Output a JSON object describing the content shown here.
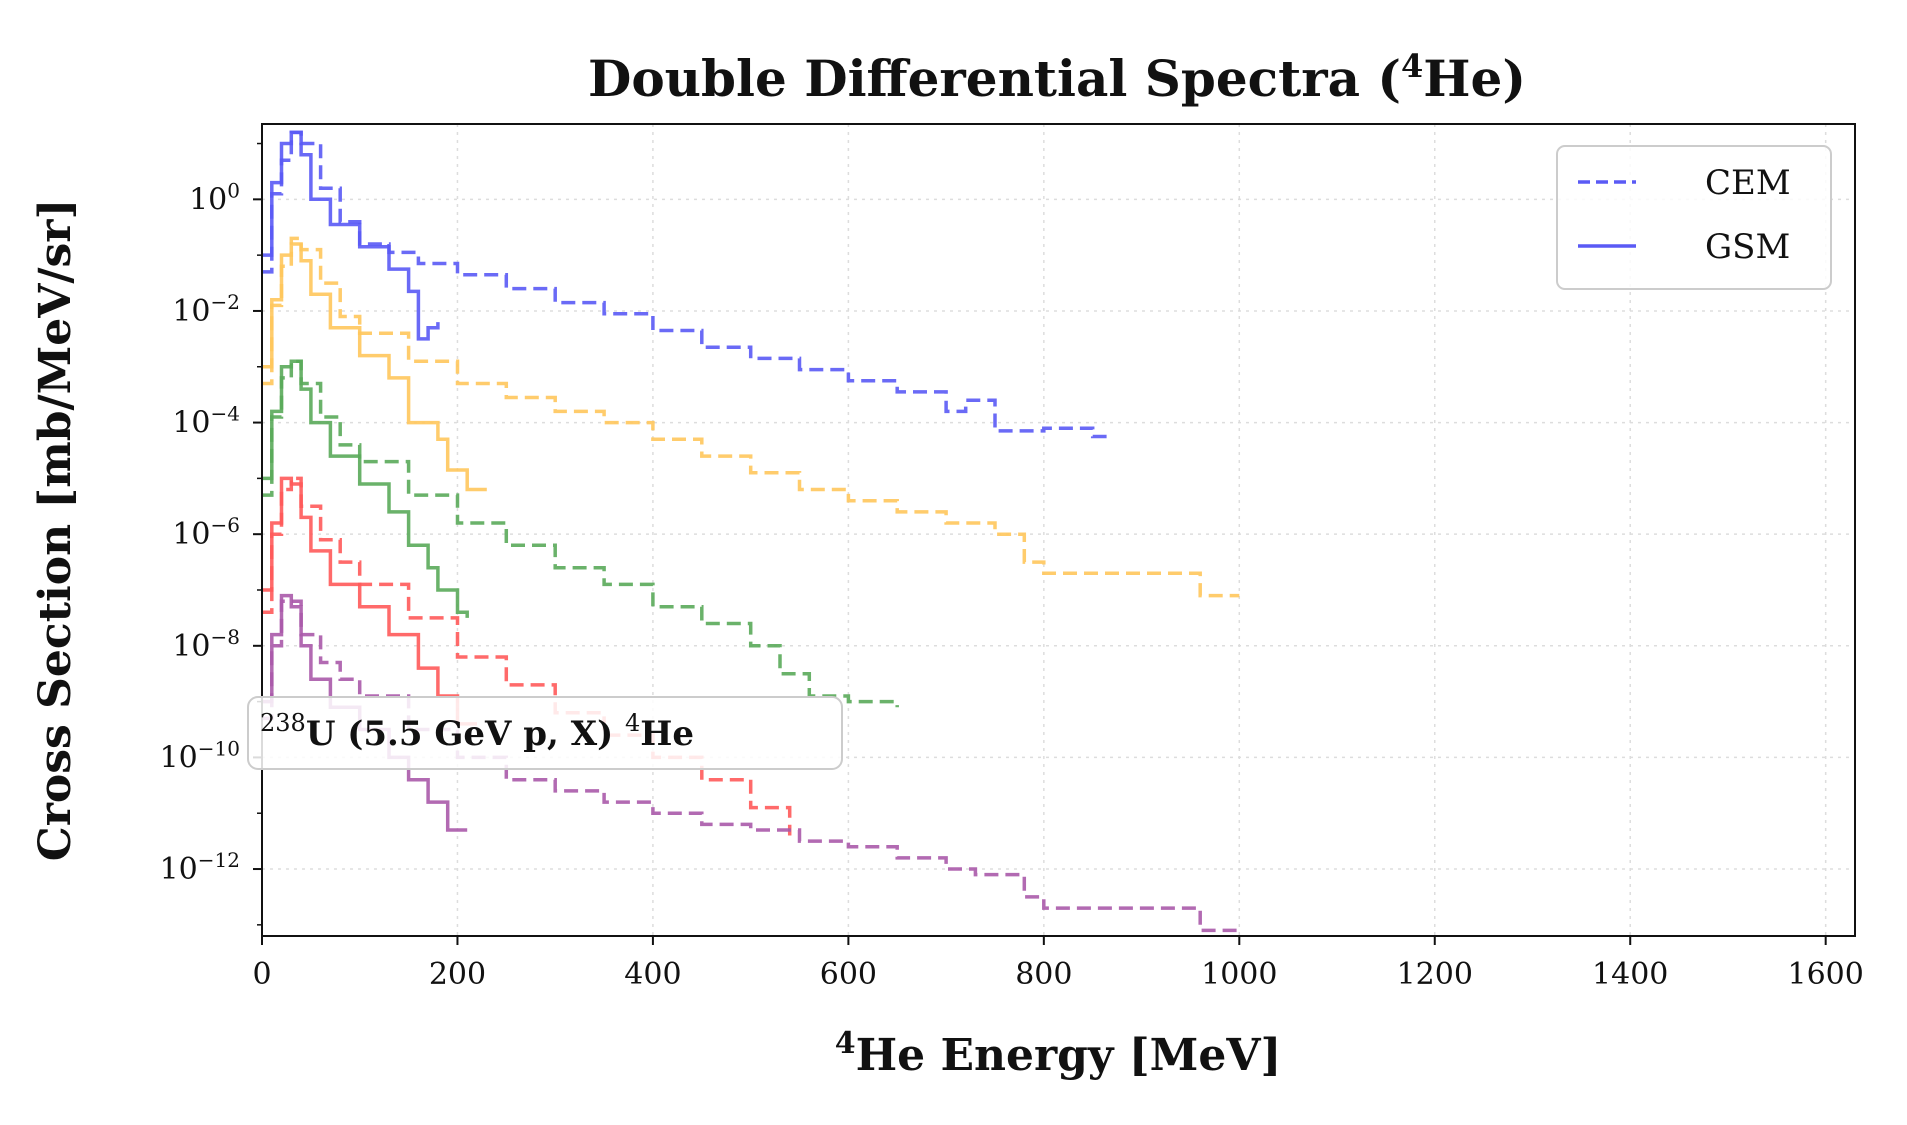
{
  "chart_data": {
    "type": "line",
    "title": "Double Differential Spectra (",
    "title_iso_mass": "4",
    "title_element": "He)",
    "xlabel_iso_mass": "4",
    "xlabel": "He Energy [MeV]",
    "ylabel": "Cross Section [mb/MeV/sr]",
    "xlim": [
      0,
      1630
    ],
    "ylim_log10": [
      -13.2,
      1.35
    ],
    "y_scale": "log",
    "grid": true,
    "legend_position": "top-right",
    "x_ticks": [
      {
        "value": 0,
        "label": "0"
      },
      {
        "value": 200,
        "label": "200"
      },
      {
        "value": 400,
        "label": "400"
      },
      {
        "value": 600,
        "label": "600"
      },
      {
        "value": 800,
        "label": "800"
      },
      {
        "value": 1000,
        "label": "1000"
      },
      {
        "value": 1200,
        "label": "1200"
      },
      {
        "value": 1400,
        "label": "1400"
      },
      {
        "value": 1600,
        "label": "1600"
      }
    ],
    "y_ticks": [
      {
        "exp": 0,
        "base": "10",
        "sup": "0"
      },
      {
        "exp": -2,
        "base": "10",
        "sup": "−2"
      },
      {
        "exp": -4,
        "base": "10",
        "sup": "−4"
      },
      {
        "exp": -6,
        "base": "10",
        "sup": "−6"
      },
      {
        "exp": -8,
        "base": "10",
        "sup": "−8"
      },
      {
        "exp": -10,
        "base": "10",
        "sup": "−10"
      },
      {
        "exp": -12,
        "base": "10",
        "sup": "−12"
      }
    ],
    "legend": [
      {
        "label": "CEM",
        "style": "dashed",
        "color": "#5a5af5"
      },
      {
        "label": "GSM",
        "style": "solid",
        "color": "#5a5af5"
      }
    ],
    "annotation": {
      "mass_sup": "238",
      "text": "U (5.5 GeV p, X) ",
      "sup2": "4",
      "text2": "He"
    },
    "series": [
      {
        "color": "#5a5af5",
        "model": "CEM",
        "style": "dashed",
        "points": [
          [
            0,
            -1.3
          ],
          [
            10,
            0.1
          ],
          [
            20,
            0.7
          ],
          [
            30,
            1.2
          ],
          [
            40,
            1.0
          ],
          [
            60,
            0.2
          ],
          [
            80,
            -0.4
          ],
          [
            100,
            -0.8
          ],
          [
            130,
            -0.95
          ],
          [
            160,
            -1.15
          ],
          [
            200,
            -1.35
          ],
          [
            250,
            -1.6
          ],
          [
            300,
            -1.85
          ],
          [
            350,
            -2.05
          ],
          [
            400,
            -2.35
          ],
          [
            450,
            -2.65
          ],
          [
            500,
            -2.85
          ],
          [
            550,
            -3.05
          ],
          [
            600,
            -3.25
          ],
          [
            650,
            -3.45
          ],
          [
            700,
            -3.8
          ],
          [
            720,
            -3.6
          ],
          [
            750,
            -4.15
          ],
          [
            800,
            -4.1
          ],
          [
            850,
            -4.25
          ],
          [
            870,
            -4.25
          ]
        ]
      },
      {
        "color": "#5a5af5",
        "model": "GSM",
        "style": "solid",
        "points": [
          [
            0,
            -1.0
          ],
          [
            10,
            0.3
          ],
          [
            20,
            1.0
          ],
          [
            30,
            1.2
          ],
          [
            40,
            0.8
          ],
          [
            50,
            0.0
          ],
          [
            70,
            -0.45
          ],
          [
            100,
            -0.85
          ],
          [
            130,
            -1.25
          ],
          [
            150,
            -1.65
          ],
          [
            160,
            -2.5
          ],
          [
            170,
            -2.3
          ],
          [
            180,
            -2.2
          ]
        ]
      },
      {
        "color": "#ffc65c",
        "model": "CEM",
        "style": "dashed",
        "points": [
          [
            0,
            -3.3
          ],
          [
            10,
            -1.9
          ],
          [
            20,
            -1.2
          ],
          [
            30,
            -0.7
          ],
          [
            40,
            -0.9
          ],
          [
            60,
            -1.5
          ],
          [
            80,
            -2.1
          ],
          [
            100,
            -2.4
          ],
          [
            150,
            -2.9
          ],
          [
            200,
            -3.3
          ],
          [
            250,
            -3.55
          ],
          [
            300,
            -3.8
          ],
          [
            350,
            -4.0
          ],
          [
            400,
            -4.3
          ],
          [
            450,
            -4.6
          ],
          [
            500,
            -4.9
          ],
          [
            550,
            -5.2
          ],
          [
            600,
            -5.4
          ],
          [
            650,
            -5.6
          ],
          [
            700,
            -5.8
          ],
          [
            750,
            -6.0
          ],
          [
            780,
            -6.5
          ],
          [
            800,
            -6.7
          ],
          [
            850,
            -6.7
          ],
          [
            900,
            -6.7
          ],
          [
            960,
            -7.1
          ],
          [
            1000,
            -7.1
          ]
        ]
      },
      {
        "color": "#ffc65c",
        "model": "GSM",
        "style": "solid",
        "points": [
          [
            0,
            -3.0
          ],
          [
            10,
            -1.8
          ],
          [
            20,
            -1.0
          ],
          [
            30,
            -0.8
          ],
          [
            40,
            -1.1
          ],
          [
            50,
            -1.7
          ],
          [
            70,
            -2.3
          ],
          [
            100,
            -2.8
          ],
          [
            130,
            -3.2
          ],
          [
            150,
            -4.0
          ],
          [
            180,
            -4.3
          ],
          [
            190,
            -4.85
          ],
          [
            210,
            -5.2
          ],
          [
            230,
            -5.2
          ]
        ]
      },
      {
        "color": "#5aaa5a",
        "model": "CEM",
        "style": "dashed",
        "points": [
          [
            0,
            -5.3
          ],
          [
            10,
            -3.9
          ],
          [
            20,
            -3.2
          ],
          [
            30,
            -2.9
          ],
          [
            40,
            -3.3
          ],
          [
            60,
            -3.9
          ],
          [
            80,
            -4.4
          ],
          [
            100,
            -4.7
          ],
          [
            150,
            -5.3
          ],
          [
            200,
            -5.8
          ],
          [
            250,
            -6.2
          ],
          [
            300,
            -6.6
          ],
          [
            350,
            -6.9
          ],
          [
            400,
            -7.3
          ],
          [
            450,
            -7.6
          ],
          [
            500,
            -8.0
          ],
          [
            530,
            -8.5
          ],
          [
            560,
            -8.9
          ],
          [
            600,
            -9.0
          ],
          [
            650,
            -9.1
          ]
        ]
      },
      {
        "color": "#5aaa5a",
        "model": "GSM",
        "style": "solid",
        "points": [
          [
            0,
            -5.0
          ],
          [
            10,
            -3.8
          ],
          [
            20,
            -3.0
          ],
          [
            30,
            -2.9
          ],
          [
            40,
            -3.4
          ],
          [
            50,
            -4.0
          ],
          [
            70,
            -4.6
          ],
          [
            100,
            -5.1
          ],
          [
            130,
            -5.6
          ],
          [
            150,
            -6.2
          ],
          [
            170,
            -6.6
          ],
          [
            180,
            -7.0
          ],
          [
            200,
            -7.4
          ],
          [
            210,
            -7.5
          ]
        ]
      },
      {
        "color": "#ff5a5a",
        "model": "CEM",
        "style": "dashed",
        "points": [
          [
            0,
            -7.4
          ],
          [
            10,
            -6.0
          ],
          [
            20,
            -5.2
          ],
          [
            30,
            -5.0
          ],
          [
            40,
            -5.5
          ],
          [
            60,
            -6.1
          ],
          [
            80,
            -6.5
          ],
          [
            100,
            -6.9
          ],
          [
            150,
            -7.5
          ],
          [
            200,
            -8.2
          ],
          [
            250,
            -8.7
          ],
          [
            300,
            -9.2
          ],
          [
            350,
            -9.6
          ],
          [
            400,
            -10.0
          ],
          [
            450,
            -10.4
          ],
          [
            500,
            -10.9
          ],
          [
            540,
            -11.4
          ]
        ]
      },
      {
        "color": "#ff5a5a",
        "model": "GSM",
        "style": "solid",
        "points": [
          [
            0,
            -7.0
          ],
          [
            10,
            -5.8
          ],
          [
            20,
            -5.0
          ],
          [
            30,
            -5.1
          ],
          [
            40,
            -5.7
          ],
          [
            50,
            -6.3
          ],
          [
            70,
            -6.9
          ],
          [
            100,
            -7.3
          ],
          [
            130,
            -7.8
          ],
          [
            160,
            -8.4
          ],
          [
            180,
            -8.9
          ],
          [
            200,
            -9.4
          ],
          [
            220,
            -9.4
          ]
        ]
      },
      {
        "color": "#aa5aaa",
        "model": "CEM",
        "style": "dashed",
        "points": [
          [
            0,
            -9.3
          ],
          [
            10,
            -8.0
          ],
          [
            20,
            -7.2
          ],
          [
            30,
            -7.2
          ],
          [
            40,
            -7.8
          ],
          [
            60,
            -8.3
          ],
          [
            80,
            -8.6
          ],
          [
            100,
            -8.9
          ],
          [
            150,
            -9.5
          ],
          [
            200,
            -10.0
          ],
          [
            250,
            -10.4
          ],
          [
            300,
            -10.6
          ],
          [
            350,
            -10.8
          ],
          [
            400,
            -11.0
          ],
          [
            450,
            -11.2
          ],
          [
            500,
            -11.3
          ],
          [
            550,
            -11.5
          ],
          [
            600,
            -11.6
          ],
          [
            650,
            -11.8
          ],
          [
            700,
            -12.0
          ],
          [
            730,
            -12.1
          ],
          [
            780,
            -12.5
          ],
          [
            800,
            -12.7
          ],
          [
            850,
            -12.7
          ],
          [
            900,
            -12.7
          ],
          [
            960,
            -13.1
          ],
          [
            1000,
            -13.1
          ]
        ]
      },
      {
        "color": "#aa5aaa",
        "model": "GSM",
        "style": "solid",
        "points": [
          [
            0,
            -9.0
          ],
          [
            10,
            -7.8
          ],
          [
            20,
            -7.1
          ],
          [
            30,
            -7.3
          ],
          [
            40,
            -8.0
          ],
          [
            50,
            -8.6
          ],
          [
            70,
            -9.1
          ],
          [
            100,
            -9.5
          ],
          [
            130,
            -10.0
          ],
          [
            150,
            -10.4
          ],
          [
            170,
            -10.8
          ],
          [
            190,
            -11.3
          ],
          [
            210,
            -11.3
          ]
        ]
      }
    ]
  }
}
